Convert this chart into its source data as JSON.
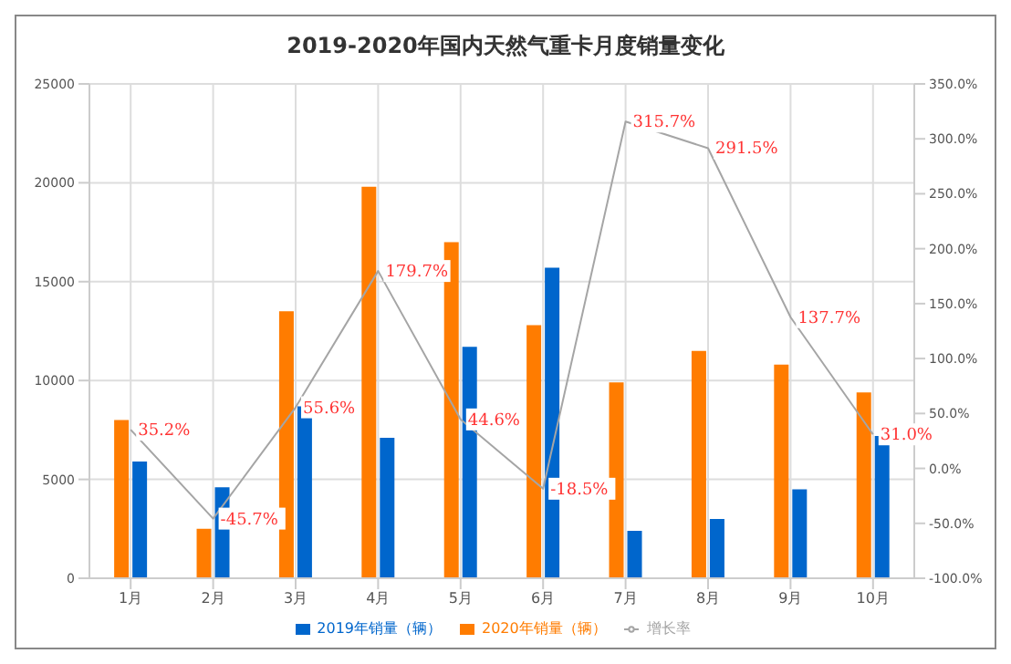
{
  "chart_data": {
    "type": "bar",
    "title": "2019-2020年国内天然气重卡月度销量变化",
    "categories": [
      "1月",
      "2月",
      "3月",
      "4月",
      "5月",
      "6月",
      "7月",
      "8月",
      "9月",
      "10月"
    ],
    "series": [
      {
        "name": "2020年销量（辆）",
        "color": "#ff7c00",
        "values": [
          8000,
          2500,
          13500,
          19800,
          17000,
          12800,
          9900,
          11500,
          10800,
          9400
        ]
      },
      {
        "name": "2019年销量（辆）",
        "color": "#0066cc",
        "values": [
          5900,
          4600,
          8700,
          7100,
          11700,
          15700,
          2400,
          3000,
          4500,
          7200
        ]
      },
      {
        "name": "增长率",
        "type": "line",
        "axis": "y2",
        "color": "#a5a5a5",
        "values": [
          35.2,
          -45.7,
          55.6,
          179.7,
          44.6,
          -18.5,
          315.7,
          291.5,
          137.7,
          31.0
        ],
        "value_labels": [
          "35.2%",
          "-45.7%",
          "55.6%",
          "179.7%",
          "44.6%",
          "-18.5%",
          "315.7%",
          "291.5%",
          "137.7%",
          "31.0%"
        ]
      }
    ],
    "ylim": [
      0,
      25000
    ],
    "yticks": [
      0,
      5000,
      10000,
      15000,
      20000,
      25000
    ],
    "y2lim": [
      -100,
      350
    ],
    "y2ticks": [
      {
        "value": -100,
        "label": "-100.0%"
      },
      {
        "value": -50,
        "label": "-50.0%"
      },
      {
        "value": 0,
        "label": "0.0%"
      },
      {
        "value": 50,
        "label": "50.0%"
      },
      {
        "value": 100,
        "label": "100.0%"
      },
      {
        "value": 150,
        "label": "150.0%"
      },
      {
        "value": 200,
        "label": "200.0%"
      },
      {
        "value": 250,
        "label": "250.0%"
      },
      {
        "value": 300,
        "label": "300.0%"
      },
      {
        "value": 350,
        "label": "350.0%"
      }
    ],
    "grid": true,
    "legend": "bottom",
    "marker": "none",
    "line_style": "solid"
  }
}
